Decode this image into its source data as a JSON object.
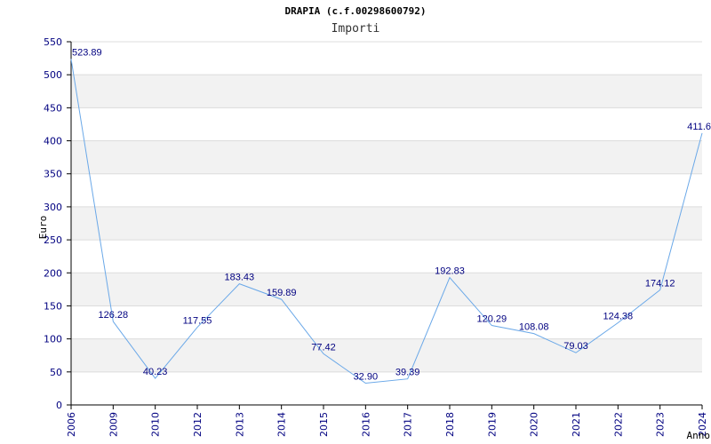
{
  "chart_data": {
    "type": "line",
    "title": "DRAPIA (c.f.00298600792)",
    "subtitle": "Importi",
    "xlabel": "Anno",
    "ylabel": "Euro",
    "categories": [
      "2006",
      "2009",
      "2010",
      "2012",
      "2013",
      "2014",
      "2015",
      "2016",
      "2017",
      "2018",
      "2019",
      "2020",
      "2021",
      "2022",
      "2023",
      "2024"
    ],
    "values": [
      523.89,
      126.28,
      40.23,
      117.55,
      183.43,
      159.89,
      77.42,
      32.9,
      39.39,
      192.83,
      120.29,
      108.08,
      79.03,
      124.38,
      174.12,
      411.6
    ],
    "labels": [
      "523.89",
      "126.28",
      "40.23",
      "117.55",
      "183.43",
      "159.89",
      "77.42",
      "32.90",
      "39.39",
      "192.83",
      "120.29",
      "108.08",
      "79.03",
      "124.38",
      "174.12",
      "411.6"
    ],
    "ylim": [
      0,
      550
    ],
    "yticks": [
      0,
      50,
      100,
      150,
      200,
      250,
      300,
      350,
      400,
      450,
      500,
      550
    ],
    "grid": "horizontal-bands",
    "colors": {
      "line": "#6aa8e8",
      "band": "#f2f2f2",
      "grid": "#dcdcdc",
      "axis": "#000000",
      "text": "#000080"
    }
  }
}
